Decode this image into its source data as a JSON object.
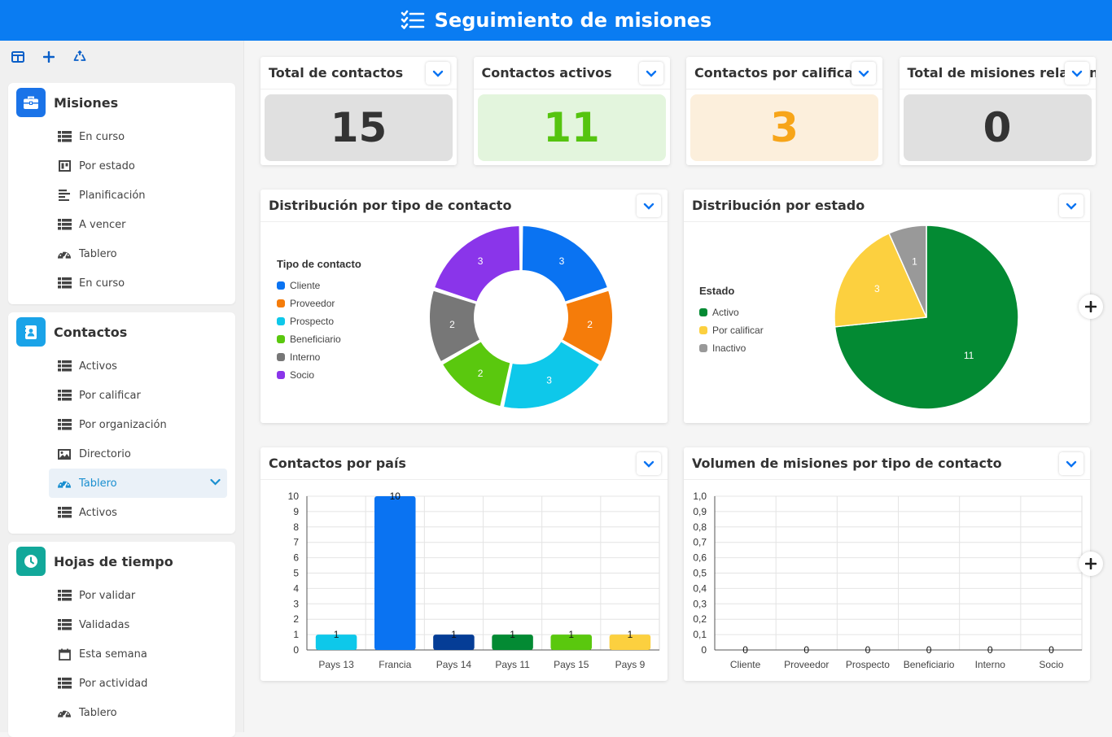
{
  "header": {
    "title": "Seguimiento de misiones"
  },
  "sidebar": {
    "groups": [
      {
        "title": "Misiones",
        "color": "#1a73e8",
        "icon": "briefcase-icon",
        "items": [
          {
            "label": "En curso",
            "icon": "table-icon"
          },
          {
            "label": "Por estado",
            "icon": "kanban-icon"
          },
          {
            "label": "Planificación",
            "icon": "gantt-icon"
          },
          {
            "label": "A vencer",
            "icon": "table-icon"
          },
          {
            "label": "Tablero",
            "icon": "dashboard-icon"
          },
          {
            "label": "En curso",
            "icon": "table-icon"
          }
        ]
      },
      {
        "title": "Contactos",
        "color": "#1aa3e8",
        "icon": "contact-card-icon",
        "items": [
          {
            "label": "Activos",
            "icon": "table-icon"
          },
          {
            "label": "Por calificar",
            "icon": "table-icon"
          },
          {
            "label": "Por organización",
            "icon": "table-icon"
          },
          {
            "label": "Directorio",
            "icon": "gallery-icon"
          },
          {
            "label": "Tablero",
            "icon": "dashboard-icon",
            "active": true
          },
          {
            "label": "Activos",
            "icon": "table-icon"
          }
        ]
      },
      {
        "title": "Hojas de tiempo",
        "color": "#12a89a",
        "icon": "clock-icon",
        "items": [
          {
            "label": "Por validar",
            "icon": "table-icon"
          },
          {
            "label": "Validadas",
            "icon": "table-icon"
          },
          {
            "label": "Esta semana",
            "icon": "calendar-icon"
          },
          {
            "label": "Por actividad",
            "icon": "table-icon"
          },
          {
            "label": "Tablero",
            "icon": "dashboard-icon"
          }
        ]
      }
    ]
  },
  "kpis": [
    {
      "title": "Total de contactos",
      "value": "15",
      "bg": "#e0e0e0",
      "fg": "#333333"
    },
    {
      "title": "Contactos activos",
      "value": "11",
      "bg": "#e3f5dd",
      "fg": "#55c40f"
    },
    {
      "title": "Contactos por calificar",
      "value": "3",
      "bg": "#fcefdc",
      "fg": "#f7a519"
    },
    {
      "title": "Total de misiones relacionadas",
      "value": "0",
      "bg": "#e0e0e0",
      "fg": "#333333"
    }
  ],
  "chart_data": [
    {
      "type": "pie",
      "variant": "donut",
      "title": "Distribución por tipo de contacto",
      "legend_title": "Tipo de contacto",
      "legend_position": "left",
      "slices": [
        {
          "label": "Cliente",
          "value": 3,
          "color": "#0a73f2"
        },
        {
          "label": "Proveedor",
          "value": 2,
          "color": "#f57c0a"
        },
        {
          "label": "Prospecto",
          "value": 3,
          "color": "#0ec8ea"
        },
        {
          "label": "Beneficiario",
          "value": 2,
          "color": "#5ac80e"
        },
        {
          "label": "Interno",
          "value": 2,
          "color": "#777777"
        },
        {
          "label": "Socio",
          "value": 3,
          "color": "#8a35ea"
        }
      ]
    },
    {
      "type": "pie",
      "title": "Distribución por estado",
      "legend_title": "Estado",
      "legend_position": "left",
      "slices": [
        {
          "label": "Activo",
          "value": 11,
          "color": "#038a33"
        },
        {
          "label": "Por calificar",
          "value": 3,
          "color": "#fcd03f"
        },
        {
          "label": "Inactivo",
          "value": 1,
          "color": "#999999"
        }
      ]
    },
    {
      "type": "bar",
      "title": "Contactos por país",
      "categories": [
        "Pays 13",
        "Francia",
        "Pays 14",
        "Pays 11",
        "Pays 15",
        "Pays 9"
      ],
      "values": [
        1,
        10,
        1,
        1,
        1,
        1
      ],
      "colors": [
        "#0ec8ea",
        "#0a73f2",
        "#053d96",
        "#038a33",
        "#5ac80e",
        "#fcd03f"
      ],
      "ylim": [
        0,
        10
      ],
      "yticks": [
        "0",
        "1",
        "2",
        "3",
        "4",
        "5",
        "6",
        "7",
        "8",
        "9",
        "10"
      ],
      "grid": true
    },
    {
      "type": "bar",
      "title": "Volumen de misiones por tipo de contacto",
      "categories": [
        "Cliente",
        "Proveedor",
        "Prospecto",
        "Beneficiario",
        "Interno",
        "Socio"
      ],
      "values": [
        0,
        0,
        0,
        0,
        0,
        0
      ],
      "ylim": [
        0,
        1
      ],
      "yticks": [
        "0",
        "0,1",
        "0,2",
        "0,3",
        "0,4",
        "0,5",
        "0,6",
        "0,7",
        "0,8",
        "0,9",
        "1,0"
      ],
      "grid": true
    }
  ]
}
